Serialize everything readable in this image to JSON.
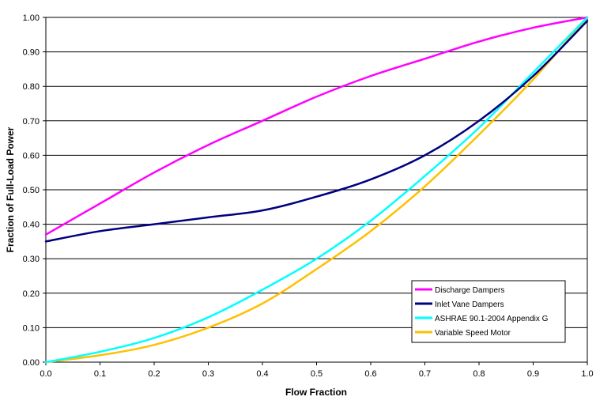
{
  "chart_data": {
    "type": "line",
    "xlabel": "Flow Fraction",
    "ylabel": "Fraction of Full-Load Power",
    "xlim": [
      0,
      1
    ],
    "ylim": [
      0,
      1
    ],
    "x_ticks": [
      "0.0",
      "0.1",
      "0.2",
      "0.3",
      "0.4",
      "0.5",
      "0.6",
      "0.7",
      "0.8",
      "0.9",
      "1.0"
    ],
    "y_ticks": [
      "0.00",
      "0.10",
      "0.20",
      "0.30",
      "0.40",
      "0.50",
      "0.60",
      "0.70",
      "0.80",
      "0.90",
      "1.00"
    ],
    "grid": "horizontal",
    "legend_position": "bottom-right",
    "x": [
      0.0,
      0.1,
      0.2,
      0.3,
      0.4,
      0.5,
      0.6,
      0.7,
      0.8,
      0.9,
      1.0
    ],
    "series": [
      {
        "name": "Discharge Dampers",
        "color": "#ff00ff",
        "values": [
          0.37,
          0.46,
          0.55,
          0.63,
          0.7,
          0.77,
          0.83,
          0.88,
          0.93,
          0.97,
          1.0
        ]
      },
      {
        "name": "Inlet Vane Dampers",
        "color": "#000080",
        "values": [
          0.35,
          0.38,
          0.4,
          0.42,
          0.44,
          0.48,
          0.53,
          0.6,
          0.7,
          0.83,
          0.99
        ]
      },
      {
        "name": "ASHRAE 90.1-2004 Appendix G",
        "color": "#00ffff",
        "values": [
          0.0,
          0.03,
          0.07,
          0.13,
          0.21,
          0.3,
          0.41,
          0.54,
          0.68,
          0.84,
          1.0
        ]
      },
      {
        "name": "Variable Speed Motor",
        "color": "#ffc000",
        "values": [
          0.0,
          0.02,
          0.05,
          0.1,
          0.17,
          0.27,
          0.38,
          0.51,
          0.66,
          0.82,
          1.0
        ]
      }
    ]
  }
}
